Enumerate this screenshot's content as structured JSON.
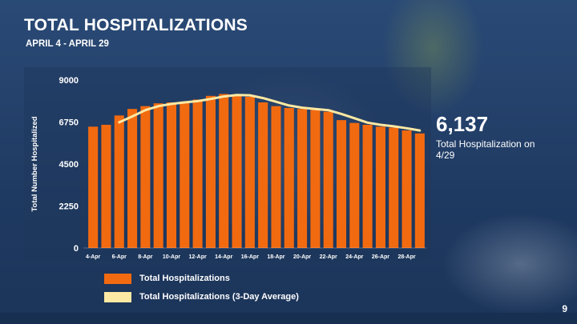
{
  "slide": {
    "title": "TOTAL HOSPITALIZATIONS",
    "subtitle": "APRIL 4 - APRIL 29",
    "page_number": "9"
  },
  "callout": {
    "value": "6,137",
    "label": "Total Hospitalization on 4/29"
  },
  "legend": {
    "items": [
      {
        "label": "Total Hospitalizations",
        "color": "#f26a10"
      },
      {
        "label": "Total Hospitalizations (3-Day Average)",
        "color": "#fde9a3"
      }
    ]
  },
  "colors": {
    "bar": "#f26a10",
    "line": "#fde9a3",
    "background": "#233f66"
  },
  "chart_data": {
    "type": "bar",
    "title": "TOTAL HOSPITALIZATIONS",
    "xlabel": "",
    "ylabel": "Total Number Hospitalized",
    "ylim": [
      0,
      9000
    ],
    "yticks": [
      0,
      2250,
      4500,
      6750,
      9000
    ],
    "ytick_labels": [
      "0",
      "2250",
      "4500",
      "6750",
      "9000"
    ],
    "grid": false,
    "categories": [
      "4-Apr",
      "5-Apr",
      "6-Apr",
      "7-Apr",
      "8-Apr",
      "9-Apr",
      "10-Apr",
      "11-Apr",
      "12-Apr",
      "13-Apr",
      "14-Apr",
      "15-Apr",
      "16-Apr",
      "17-Apr",
      "18-Apr",
      "19-Apr",
      "20-Apr",
      "21-Apr",
      "22-Apr",
      "23-Apr",
      "24-Apr",
      "25-Apr",
      "26-Apr",
      "27-Apr",
      "28-Apr",
      "29-Apr"
    ],
    "xtick_labels": [
      "4-Apr",
      "",
      "6-Apr",
      "",
      "8-Apr",
      "",
      "10-Apr",
      "",
      "12-Apr",
      "",
      "14-Apr",
      "",
      "16-Apr",
      "",
      "18-Apr",
      "",
      "20-Apr",
      "",
      "22-Apr",
      "",
      "24-Apr",
      "",
      "26-Apr",
      "",
      "28-Apr",
      ""
    ],
    "series": [
      {
        "name": "Total Hospitalizations",
        "type": "bar",
        "values": [
          6500,
          6600,
          7100,
          7450,
          7600,
          7750,
          7800,
          7850,
          7950,
          8150,
          8250,
          8200,
          8100,
          7800,
          7600,
          7500,
          7450,
          7400,
          7300,
          6850,
          6700,
          6600,
          6500,
          6450,
          6300,
          6137
        ]
      },
      {
        "name": "Total Hospitalizations (3-Day Average)",
        "type": "line",
        "values": [
          null,
          null,
          6733,
          7050,
          7383,
          7600,
          7717,
          7800,
          7867,
          7983,
          8117,
          8200,
          8183,
          8033,
          7833,
          7633,
          7517,
          7450,
          7383,
          7183,
          6950,
          6717,
          6600,
          6517,
          6417,
          6296
        ]
      }
    ]
  }
}
